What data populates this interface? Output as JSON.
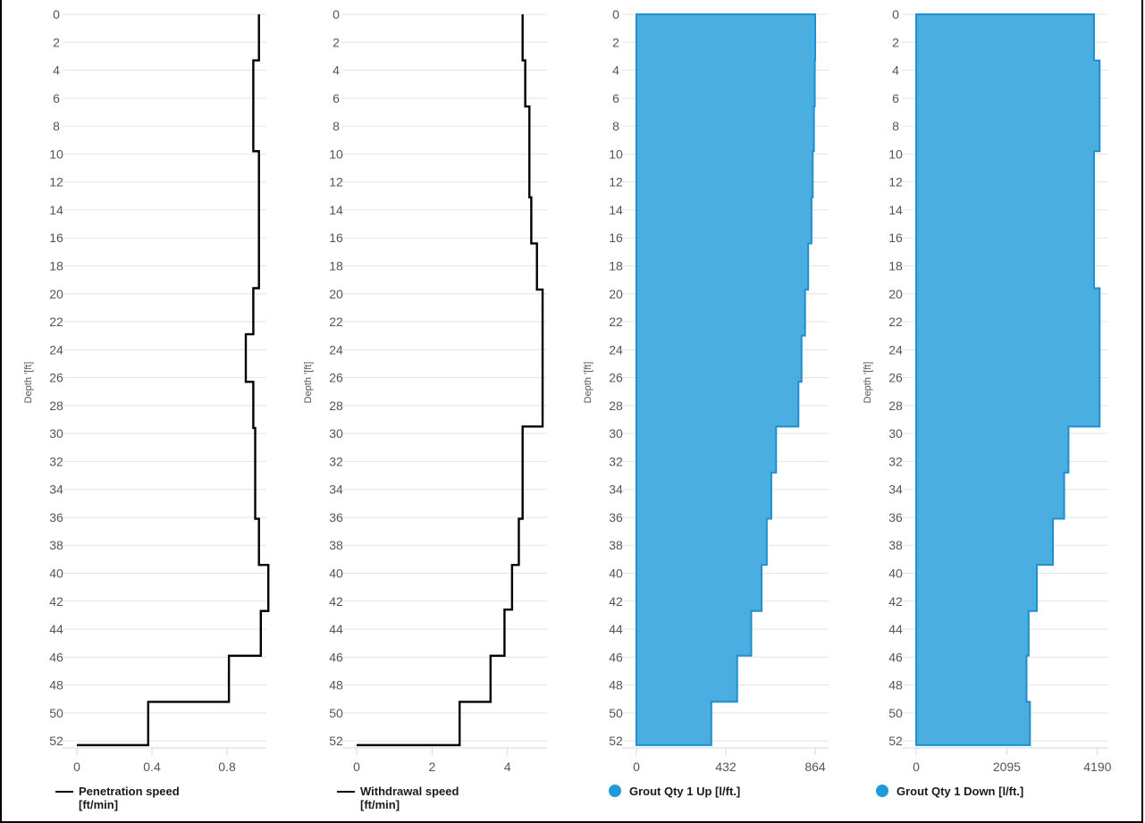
{
  "y_axis_label": "Depth '[ft]",
  "depth_ticks": [
    0,
    2,
    4,
    6,
    8,
    10,
    12,
    14,
    16,
    18,
    20,
    22,
    24,
    26,
    28,
    30,
    32,
    34,
    36,
    38,
    40,
    42,
    44,
    46,
    48,
    50,
    52
  ],
  "chart_data": [
    {
      "type": "line",
      "series": [
        {
          "name": "Penetration speed\n[ft/min]",
          "color": "#000000"
        }
      ],
      "xlim": [
        0,
        1.0
      ],
      "xticks": [
        "0",
        "0.4",
        "0.8"
      ],
      "xtick_values": [
        0,
        0.4,
        0.8
      ],
      "ylim": [
        0,
        52.5
      ],
      "ylabel": "Depth '[ft]",
      "steps": [
        {
          "from": 0,
          "to": 3.3,
          "value": 0.97
        },
        {
          "from": 3.3,
          "to": 9.8,
          "value": 0.94
        },
        {
          "from": 9.8,
          "to": 19.6,
          "value": 0.97
        },
        {
          "from": 19.6,
          "to": 22.9,
          "value": 0.94
        },
        {
          "from": 22.9,
          "to": 26.3,
          "value": 0.9
        },
        {
          "from": 26.3,
          "to": 29.6,
          "value": 0.94
        },
        {
          "from": 29.6,
          "to": 36.1,
          "value": 0.95
        },
        {
          "from": 36.1,
          "to": 39.4,
          "value": 0.97
        },
        {
          "from": 39.4,
          "to": 42.7,
          "value": 1.02
        },
        {
          "from": 42.7,
          "to": 45.9,
          "value": 0.98
        },
        {
          "from": 45.9,
          "to": 49.2,
          "value": 0.81
        },
        {
          "from": 49.2,
          "to": 52.3,
          "value": 0.38
        }
      ]
    },
    {
      "type": "line",
      "series": [
        {
          "name": "Withdrawal speed\n[ft/min]",
          "color": "#000000"
        }
      ],
      "xlim": [
        0,
        5
      ],
      "xticks": [
        "0",
        "2",
        "4"
      ],
      "xtick_values": [
        0,
        2,
        4
      ],
      "ylim": [
        0,
        52.5
      ],
      "ylabel": "Depth '[ft]",
      "steps": [
        {
          "from": 0,
          "to": 3.3,
          "value": 4.4
        },
        {
          "from": 3.3,
          "to": 6.6,
          "value": 4.47
        },
        {
          "from": 6.6,
          "to": 13.1,
          "value": 4.58
        },
        {
          "from": 13.1,
          "to": 16.4,
          "value": 4.63
        },
        {
          "from": 16.4,
          "to": 19.7,
          "value": 4.78
        },
        {
          "from": 19.7,
          "to": 29.5,
          "value": 4.93
        },
        {
          "from": 29.5,
          "to": 36.1,
          "value": 4.4
        },
        {
          "from": 36.1,
          "to": 39.4,
          "value": 4.3
        },
        {
          "from": 39.4,
          "to": 42.6,
          "value": 4.12
        },
        {
          "from": 42.6,
          "to": 45.9,
          "value": 3.92
        },
        {
          "from": 45.9,
          "to": 49.2,
          "value": 3.55
        },
        {
          "from": 49.2,
          "to": 52.3,
          "value": 2.73
        }
      ]
    },
    {
      "type": "area",
      "series": [
        {
          "name": "Grout Qty 1 Up [l/ft.]",
          "color": "#4aaee0"
        }
      ],
      "xlim": [
        0,
        920
      ],
      "xticks": [
        "0",
        "432",
        "864"
      ],
      "xtick_values": [
        0,
        432,
        864
      ],
      "ylim": [
        0,
        52.5
      ],
      "ylabel": "Depth '[ft]",
      "steps": [
        {
          "from": 0,
          "to": 3.3,
          "value": 864
        },
        {
          "from": 3.3,
          "to": 6.6,
          "value": 862
        },
        {
          "from": 6.6,
          "to": 9.8,
          "value": 858
        },
        {
          "from": 9.8,
          "to": 13.1,
          "value": 852
        },
        {
          "from": 13.1,
          "to": 16.4,
          "value": 846
        },
        {
          "from": 16.4,
          "to": 19.7,
          "value": 830
        },
        {
          "from": 19.7,
          "to": 23.0,
          "value": 815
        },
        {
          "from": 23.0,
          "to": 26.3,
          "value": 798
        },
        {
          "from": 26.3,
          "to": 29.5,
          "value": 783
        },
        {
          "from": 29.5,
          "to": 32.8,
          "value": 675
        },
        {
          "from": 32.8,
          "to": 36.1,
          "value": 652
        },
        {
          "from": 36.1,
          "to": 39.4,
          "value": 630
        },
        {
          "from": 39.4,
          "to": 42.7,
          "value": 605
        },
        {
          "from": 42.7,
          "to": 45.9,
          "value": 555
        },
        {
          "from": 45.9,
          "to": 49.2,
          "value": 487
        },
        {
          "from": 49.2,
          "to": 52.3,
          "value": 362
        }
      ]
    },
    {
      "type": "area",
      "series": [
        {
          "name": "Grout Qty 1 Down [l/ft.]",
          "color": "#4aaee0"
        }
      ],
      "xlim": [
        0,
        4400
      ],
      "xticks": [
        "0",
        "2095",
        "4190"
      ],
      "xtick_values": [
        0,
        2095,
        4190
      ],
      "ylim": [
        0,
        52.5
      ],
      "ylabel": "Depth '[ft]",
      "steps": [
        {
          "from": 0,
          "to": 3.3,
          "value": 4110
        },
        {
          "from": 3.3,
          "to": 9.8,
          "value": 4240
        },
        {
          "from": 9.8,
          "to": 19.6,
          "value": 4110
        },
        {
          "from": 19.6,
          "to": 29.5,
          "value": 4240
        },
        {
          "from": 29.5,
          "to": 32.8,
          "value": 3520
        },
        {
          "from": 32.8,
          "to": 36.1,
          "value": 3420
        },
        {
          "from": 36.1,
          "to": 39.4,
          "value": 3160
        },
        {
          "from": 39.4,
          "to": 42.7,
          "value": 2790
        },
        {
          "from": 42.7,
          "to": 45.9,
          "value": 2600
        },
        {
          "from": 45.9,
          "to": 49.2,
          "value": 2550
        },
        {
          "from": 49.2,
          "to": 52.3,
          "value": 2630
        }
      ]
    }
  ]
}
